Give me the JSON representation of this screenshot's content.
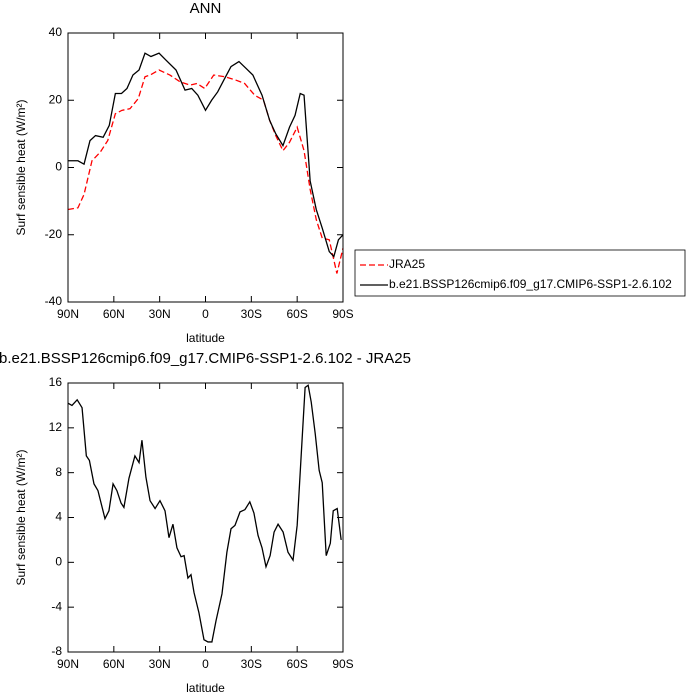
{
  "chart_data": [
    {
      "type": "line",
      "title": "ANN",
      "xlabel": "latitude",
      "ylabel": "Surf sensible heat (W/m²)",
      "xlim": [
        90,
        -90
      ],
      "ylim": [
        -40,
        40
      ],
      "xticks": [
        {
          "value": 90,
          "label": "90N"
        },
        {
          "value": 60,
          "label": "60N"
        },
        {
          "value": 30,
          "label": "30N"
        },
        0,
        {
          "value": -30,
          "label": "30S"
        },
        {
          "value": -60,
          "label": "60S"
        },
        {
          "value": -90,
          "label": "90S"
        }
      ],
      "yticks": [
        -40,
        -20,
        0,
        20,
        40
      ],
      "legend": "right",
      "series": [
        {
          "name": "JRA25",
          "color": "#ff0000",
          "dashed": true,
          "x": [
            90,
            83.5,
            79.5,
            74.3,
            69,
            64,
            59,
            54.7,
            49.4,
            44,
            39.6,
            36.3,
            30.4,
            23.3,
            16.7,
            10.2,
            5.6,
            0.5,
            -5.4,
            -12.6,
            -19.8,
            -25.6,
            -32.2,
            -38,
            -42,
            -46,
            -50.7,
            -55,
            -60,
            -64.5,
            -68.5,
            -72.5,
            -76.4,
            -81,
            -86,
            -90
          ],
          "values": [
            -12.5,
            -12,
            -8,
            2,
            4.5,
            8,
            16,
            17,
            17.5,
            20.5,
            27,
            27.5,
            29,
            27.5,
            25.5,
            24.5,
            25,
            23.5,
            27.5,
            27,
            26,
            25,
            21.5,
            20,
            14,
            9.5,
            5,
            7.5,
            12,
            5,
            -6.5,
            -15.5,
            -21,
            -21.5,
            -31.5,
            -24
          ]
        },
        {
          "name": "b.e21.BSSP126cmip6.f09_g17.CMIP6-SSP1-2.6.102",
          "color": "#000000",
          "dashed": false,
          "x": [
            90,
            83.5,
            79.5,
            75.6,
            72,
            67,
            63,
            59,
            55,
            51.4,
            47.5,
            43.5,
            39.6,
            35.7,
            30.4,
            26,
            19.3,
            13.4,
            9,
            5,
            0,
            -4,
            -8,
            -12,
            -16.7,
            -21.9,
            -26.5,
            -31,
            -37,
            -42,
            -46,
            -50.7,
            -55,
            -58.6,
            -62,
            -64.5,
            -68.5,
            -72.5,
            -76.4,
            -81,
            -84,
            -87,
            -90
          ],
          "values": [
            2,
            2,
            1,
            8,
            9.5,
            9,
            12.5,
            22,
            22,
            23.5,
            27.5,
            29,
            34,
            33,
            34,
            32,
            29,
            23,
            23.5,
            21.5,
            17,
            20,
            22.5,
            26,
            30,
            31.5,
            29.5,
            27.5,
            21.5,
            14,
            10,
            6.5,
            12,
            15.5,
            22,
            21.5,
            -4,
            -12.5,
            -18,
            -25,
            -26.5,
            -21.5,
            -20
          ]
        }
      ]
    },
    {
      "type": "line",
      "title": "b.e21.BSSP126cmip6.f09_g17.CMIP6-SSP1-2.6.102 - JRA25",
      "xlabel": "latitude",
      "ylabel": "Surf sensible heat (W/m²)",
      "xlim": [
        90,
        -90
      ],
      "ylim": [
        -8,
        16
      ],
      "xticks": [
        {
          "value": 90,
          "label": "90N"
        },
        {
          "value": 60,
          "label": "60N"
        },
        {
          "value": 30,
          "label": "30N"
        },
        0,
        {
          "value": -30,
          "label": "30S"
        },
        {
          "value": -60,
          "label": "60S"
        },
        {
          "value": -90,
          "label": "90S"
        }
      ],
      "yticks": [
        -8,
        -4,
        0,
        4,
        8,
        12,
        16
      ],
      "color": "#000000",
      "x": [
        90,
        87.4,
        84,
        80.8,
        78,
        76,
        73,
        70.4,
        65.8,
        63.2,
        60.5,
        58,
        55.3,
        53.4,
        50.1,
        46.2,
        43.5,
        41.6,
        39,
        36.3,
        33,
        29.8,
        26.5,
        23.9,
        21.3,
        18.7,
        16,
        14,
        11.5,
        9.5,
        7.5,
        4.3,
        1,
        -1.6,
        -4.2,
        -6.9,
        -10.8,
        -14,
        -16.7,
        -19.3,
        -22.6,
        -25.8,
        -29,
        -31.7,
        -34.4,
        -37,
        -39.6,
        -42.3,
        -44.9,
        -47.5,
        -50.8,
        -54,
        -57.3,
        -60,
        -63.2,
        -65.2,
        -67.2,
        -69.2,
        -71.8,
        -74.4,
        -76.4,
        -79,
        -81.7,
        -83.6,
        -86.2,
        -88.8
      ],
      "values": [
        14.2,
        14,
        14.5,
        13.8,
        9.5,
        9.1,
        7,
        6.4,
        3.9,
        4.6,
        7,
        6.4,
        5.3,
        4.9,
        7.5,
        9.5,
        8.9,
        10.9,
        7.6,
        5.5,
        4.8,
        5.5,
        4.6,
        2.2,
        3.4,
        1.3,
        0.5,
        0.6,
        -1.4,
        -1.1,
        -2.7,
        -4.5,
        -6.9,
        -7.1,
        -7.1,
        -5.2,
        -2.8,
        0.9,
        3,
        3.3,
        4.5,
        4.7,
        5.4,
        4.4,
        2.4,
        1.3,
        -0.4,
        0.6,
        2.7,
        3.4,
        2.7,
        0.9,
        0.2,
        3.3,
        10.9,
        15.6,
        15.8,
        14.3,
        11.5,
        8.2,
        7.1,
        0.6,
        1.7,
        4.6,
        4.8,
        2
      ]
    }
  ]
}
